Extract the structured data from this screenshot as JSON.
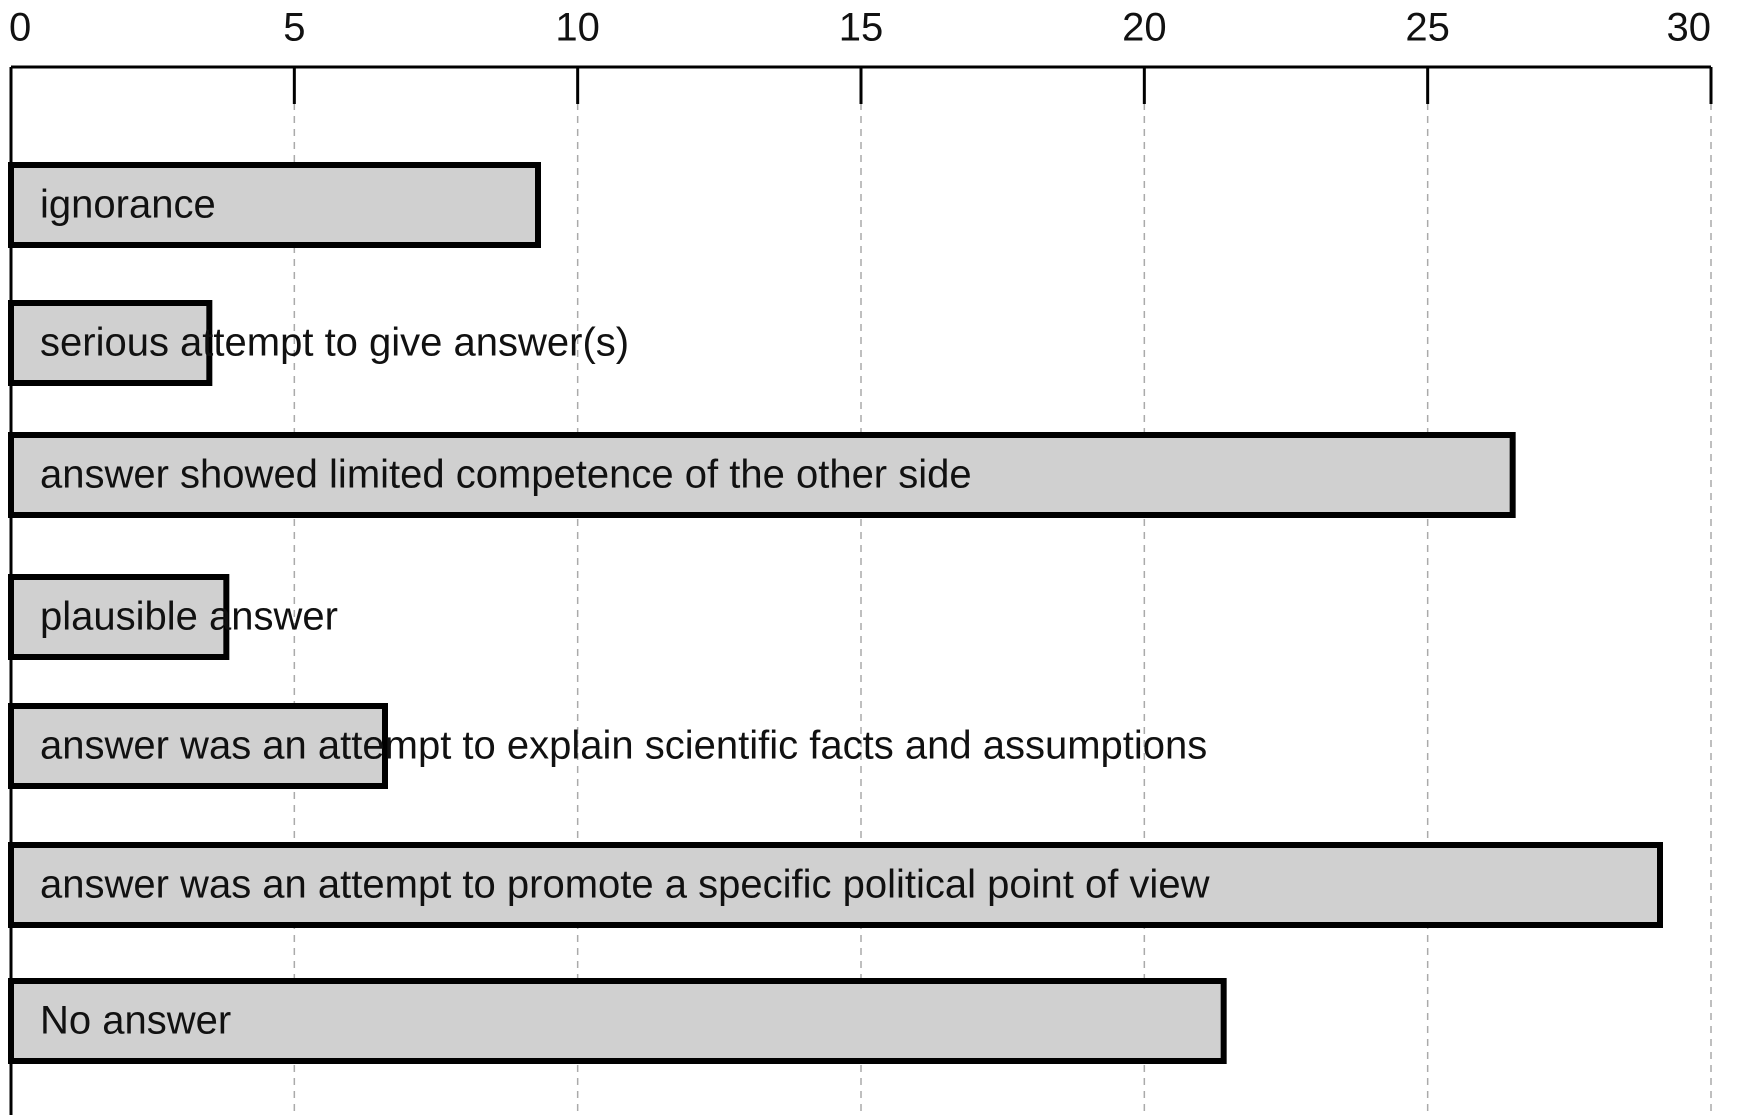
{
  "chart_data": {
    "type": "bar",
    "orientation": "horizontal",
    "categories": [
      "ignorance",
      "serious attempt to give answer(s)",
      "answer showed limited competence of the other side",
      "plausible answer",
      "answer was an attempt to explain scientific facts and assumptions",
      "answer was an attempt to promote a specific political point of view",
      "No answer"
    ],
    "values": [
      9.3,
      3.5,
      26.5,
      3.8,
      6.6,
      29.1,
      21.4
    ],
    "color": "#d0d0d0",
    "xlim": [
      0,
      30
    ],
    "xticks": [
      0,
      5,
      10,
      15,
      20,
      25,
      30
    ],
    "grid": true
  }
}
